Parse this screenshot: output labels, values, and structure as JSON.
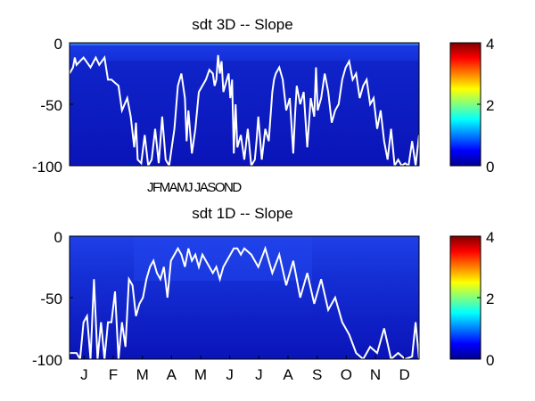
{
  "chart_data": [
    {
      "type": "heatmap",
      "title": "sdt 3D   -- Slope",
      "ylim": [
        -100,
        0
      ],
      "yticks": [
        "0",
        "-50",
        "-100"
      ],
      "xtick_text": "JFMAMJ JASOND",
      "colorbar": {
        "range": [
          0,
          4
        ],
        "ticks": [
          "4",
          "2",
          "0"
        ],
        "colormap": "jet"
      },
      "overlay_line": {
        "color": "#ffffff",
        "x_fraction": [
          0.0,
          0.01,
          0.015,
          0.02,
          0.04,
          0.06,
          0.075,
          0.085,
          0.1,
          0.11,
          0.12,
          0.14,
          0.15,
          0.165,
          0.175,
          0.185,
          0.19,
          0.195,
          0.205,
          0.215,
          0.225,
          0.235,
          0.245,
          0.255,
          0.26,
          0.265,
          0.275,
          0.285,
          0.3,
          0.31,
          0.32,
          0.33,
          0.335,
          0.34,
          0.35,
          0.36,
          0.37,
          0.38,
          0.39,
          0.4,
          0.41,
          0.415,
          0.42,
          0.425,
          0.43,
          0.435,
          0.44,
          0.45,
          0.455,
          0.46,
          0.465,
          0.47,
          0.475,
          0.48,
          0.49,
          0.5,
          0.51,
          0.52,
          0.53,
          0.535,
          0.54,
          0.55,
          0.56,
          0.57,
          0.58,
          0.585,
          0.59,
          0.6,
          0.61,
          0.62,
          0.63,
          0.64,
          0.645,
          0.65,
          0.66,
          0.67,
          0.68,
          0.69,
          0.7,
          0.705,
          0.71,
          0.72,
          0.73,
          0.74,
          0.75,
          0.76,
          0.77,
          0.775,
          0.78,
          0.785,
          0.79,
          0.8,
          0.81,
          0.82,
          0.83,
          0.84,
          0.85,
          0.86,
          0.87,
          0.88,
          0.89,
          0.9,
          0.91,
          0.92,
          0.93,
          0.94,
          0.95,
          0.96,
          0.97,
          0.98,
          0.99,
          1.0
        ],
        "y": [
          -25,
          -20,
          -12,
          -18,
          -12,
          -20,
          -12,
          -18,
          -12,
          -30,
          -30,
          -35,
          -55,
          -45,
          -60,
          -85,
          -65,
          -95,
          -98,
          -75,
          -100,
          -95,
          -70,
          -98,
          -80,
          -60,
          -95,
          -100,
          -70,
          -35,
          -25,
          -45,
          -80,
          -55,
          -90,
          -70,
          -40,
          -35,
          -30,
          -22,
          -25,
          -35,
          -30,
          -10,
          -25,
          -15,
          -40,
          -30,
          -25,
          -45,
          -30,
          -90,
          -50,
          -85,
          -75,
          -95,
          -70,
          -100,
          -95,
          -80,
          -60,
          -95,
          -70,
          -80,
          -40,
          -30,
          -25,
          -20,
          -30,
          -55,
          -45,
          -90,
          -60,
          -35,
          -50,
          -40,
          -85,
          -45,
          -60,
          -20,
          -55,
          -45,
          -25,
          -40,
          -65,
          -55,
          -50,
          -40,
          -30,
          -25,
          -20,
          -15,
          -30,
          -25,
          -45,
          -35,
          -30,
          -50,
          -45,
          -70,
          -55,
          -80,
          -95,
          -70,
          -100,
          -95,
          -100,
          -98,
          -100,
          -80,
          -100,
          -75
        ]
      }
    },
    {
      "type": "heatmap",
      "title": "sdt 1D   -- Slope",
      "ylim": [
        -100,
        0
      ],
      "yticks": [
        "0",
        "-50",
        "-100"
      ],
      "xticks": [
        "J",
        "F",
        "M",
        "A",
        "M",
        "J",
        "J",
        "A",
        "S",
        "O",
        "N",
        "D"
      ],
      "colorbar": {
        "range": [
          0,
          4
        ],
        "ticks": [
          "4",
          "2",
          "0"
        ],
        "colormap": "jet"
      },
      "overlay_line": {
        "color": "#ffffff",
        "x_fraction": [
          0.0,
          0.02,
          0.03,
          0.04,
          0.05,
          0.06,
          0.07,
          0.08,
          0.09,
          0.1,
          0.11,
          0.12,
          0.13,
          0.14,
          0.15,
          0.16,
          0.17,
          0.18,
          0.19,
          0.2,
          0.21,
          0.22,
          0.23,
          0.24,
          0.25,
          0.26,
          0.27,
          0.28,
          0.29,
          0.3,
          0.31,
          0.32,
          0.33,
          0.34,
          0.35,
          0.36,
          0.37,
          0.38,
          0.39,
          0.4,
          0.41,
          0.42,
          0.43,
          0.44,
          0.45,
          0.46,
          0.47,
          0.48,
          0.49,
          0.5,
          0.52,
          0.54,
          0.56,
          0.58,
          0.6,
          0.62,
          0.64,
          0.66,
          0.68,
          0.7,
          0.72,
          0.74,
          0.76,
          0.78,
          0.8,
          0.82,
          0.84,
          0.86,
          0.88,
          0.9,
          0.92,
          0.94,
          0.96,
          0.98,
          0.99,
          1.0
        ],
        "y": [
          -95,
          -95,
          -100,
          -70,
          -65,
          -100,
          -35,
          -100,
          -70,
          -100,
          -70,
          -70,
          -45,
          -100,
          -70,
          -90,
          -35,
          -40,
          -65,
          -55,
          -50,
          -35,
          -25,
          -20,
          -30,
          -35,
          -25,
          -50,
          -20,
          -15,
          -10,
          -15,
          -25,
          -10,
          -20,
          -15,
          -25,
          -15,
          -20,
          -25,
          -30,
          -25,
          -35,
          -25,
          -20,
          -15,
          -10,
          -10,
          -15,
          -10,
          -15,
          -25,
          -10,
          -30,
          -15,
          -40,
          -20,
          -50,
          -30,
          -55,
          -35,
          -60,
          -50,
          -70,
          -80,
          -95,
          -100,
          -90,
          -95,
          -75,
          -100,
          -95,
          -100,
          -98,
          -70,
          -100
        ]
      }
    }
  ]
}
